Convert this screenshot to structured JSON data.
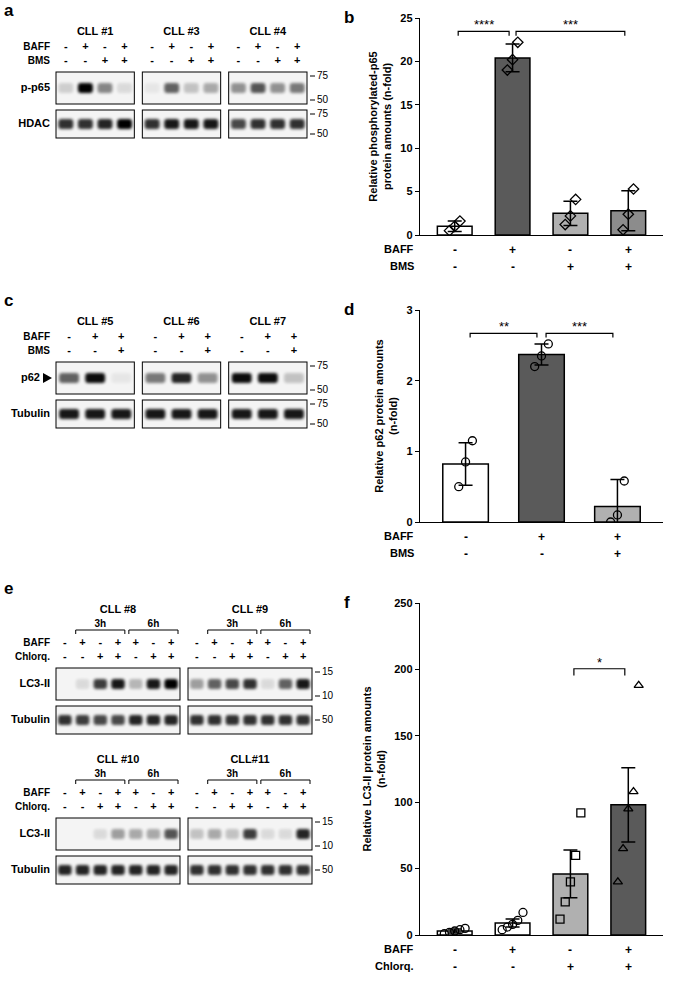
{
  "blots": [
    {
      "panel": "a",
      "conditions": [
        {
          "label": "BAFF",
          "values": [
            "-",
            "+",
            "-",
            "+"
          ]
        },
        {
          "label": "BMS",
          "values": [
            "-",
            "-",
            "+",
            "+"
          ]
        }
      ],
      "rows": [
        {
          "label": "p-p65",
          "markers": [
            75,
            50
          ]
        },
        {
          "label": "HDAC",
          "markers": [
            75,
            50
          ]
        }
      ],
      "samples": [
        {
          "name": "CLL #1",
          "bands": [
            [
              0.15,
              1.0,
              0.45,
              0.1
            ],
            [
              0.8,
              0.8,
              0.85,
              1.0
            ]
          ]
        },
        {
          "name": "CLL #3",
          "bands": [
            [
              0.05,
              0.6,
              0.2,
              0.3
            ],
            [
              0.8,
              0.9,
              0.9,
              0.9
            ]
          ]
        },
        {
          "name": "CLL #4",
          "bands": [
            [
              0.4,
              0.65,
              0.4,
              0.5
            ],
            [
              0.7,
              0.8,
              0.8,
              0.8
            ]
          ]
        }
      ]
    },
    {
      "panel": "c",
      "conditions": [
        {
          "label": "BAFF",
          "values": [
            "-",
            "+",
            "+"
          ]
        },
        {
          "label": "BMS",
          "values": [
            "-",
            "-",
            "+"
          ]
        }
      ],
      "rows": [
        {
          "label": "p62",
          "arrow": true,
          "markers": [
            75,
            50
          ]
        },
        {
          "label": "Tubulin",
          "markers": [
            75,
            50
          ]
        }
      ],
      "samples": [
        {
          "name": "CLL #5",
          "bands": [
            [
              0.6,
              0.95,
              0.05
            ],
            [
              0.9,
              0.9,
              0.9
            ]
          ]
        },
        {
          "name": "CLL #6",
          "bands": [
            [
              0.5,
              0.85,
              0.4
            ],
            [
              0.9,
              0.9,
              0.9
            ]
          ]
        },
        {
          "name": "CLL #7",
          "bands": [
            [
              0.95,
              0.95,
              0.2
            ],
            [
              0.9,
              0.9,
              0.9
            ]
          ]
        }
      ]
    },
    {
      "panel": "e",
      "groups": [
        {
          "label": "3h",
          "lanes": [
            1,
            3
          ]
        },
        {
          "label": "6h",
          "lanes": [
            4,
            6
          ]
        }
      ],
      "conditions": [
        {
          "label": "BAFF",
          "values": [
            "-",
            "+",
            "-",
            "+",
            "+",
            "-",
            "+"
          ]
        },
        {
          "label": "Chlorq.",
          "values": [
            "-",
            "-",
            "+",
            "+",
            "-",
            "+",
            "+"
          ]
        }
      ],
      "rows": [
        {
          "label": "LC3-II",
          "markers": [
            15,
            10
          ]
        },
        {
          "label": "Tubulin",
          "markers": [
            50
          ]
        }
      ],
      "samples": [
        {
          "name": "CLL #8",
          "bands": [
            [
              0.0,
              0.1,
              0.75,
              0.9,
              0.25,
              0.9,
              1.0
            ],
            [
              0.8,
              0.75,
              0.7,
              0.7,
              0.85,
              0.85,
              0.85
            ]
          ]
        },
        {
          "name": "CLL #9",
          "bands": [
            [
              0.35,
              0.6,
              0.7,
              0.8,
              0.1,
              0.6,
              0.9
            ],
            [
              0.8,
              0.8,
              0.8,
              0.8,
              0.8,
              0.8,
              0.8
            ]
          ]
        },
        {
          "name": "CLL #10",
          "bands": [
            [
              0.0,
              0.0,
              0.1,
              0.35,
              0.3,
              0.3,
              0.65
            ],
            [
              0.85,
              0.85,
              0.85,
              0.85,
              0.85,
              0.85,
              0.85
            ]
          ]
        },
        {
          "name": "CLL#11",
          "bands": [
            [
              0.2,
              0.3,
              0.2,
              0.75,
              0.1,
              0.1,
              0.85
            ],
            [
              0.8,
              0.8,
              0.8,
              0.8,
              0.8,
              0.8,
              0.8
            ]
          ]
        }
      ]
    }
  ],
  "chart_data": [
    {
      "panel": "b",
      "type": "bar",
      "y_label": [
        "Relative phosphorylated-p65",
        "protein amounts (n-fold)"
      ],
      "ylim": [
        0,
        25
      ],
      "yticks": [
        0,
        5,
        10,
        15,
        20,
        25
      ],
      "x_rows": [
        {
          "label": "BAFF",
          "values": [
            "-",
            "+",
            "-",
            "+"
          ]
        },
        {
          "label": "BMS",
          "values": [
            "-",
            "-",
            "+",
            "+"
          ]
        }
      ],
      "values": [
        1.0,
        20.4,
        2.5,
        2.8
      ],
      "error": [
        0.6,
        1.6,
        1.4,
        2.3
      ],
      "points": [
        {
          "marker": "diamond",
          "values": [
            0.5,
            1.0,
            1.6
          ]
        },
        {
          "marker": "diamond",
          "values": [
            19.0,
            20.2,
            22.2
          ]
        },
        {
          "marker": "diamond",
          "values": [
            1.2,
            2.2,
            4.1
          ]
        },
        {
          "marker": "diamond",
          "values": [
            0.6,
            2.4,
            5.3
          ]
        }
      ],
      "colors": [
        "#ffffff",
        "#5a5a5a",
        "#b0b0b0",
        "#8c8c8c"
      ],
      "significance": [
        {
          "from": 0,
          "to": 1,
          "label": "****"
        },
        {
          "from": 1,
          "to": 3,
          "label": "***"
        }
      ]
    },
    {
      "panel": "d",
      "type": "bar",
      "y_label": [
        "Relative p62 protein amounts",
        "(n-fold)"
      ],
      "ylim": [
        0,
        3
      ],
      "yticks": [
        0,
        1,
        2,
        3
      ],
      "x_rows": [
        {
          "label": "BAFF",
          "values": [
            "-",
            "+",
            "+"
          ]
        },
        {
          "label": "BMS",
          "values": [
            "-",
            "-",
            "+"
          ]
        }
      ],
      "values": [
        0.82,
        2.37,
        0.22
      ],
      "error": [
        0.3,
        0.15,
        0.38
      ],
      "points": [
        {
          "marker": "circle",
          "values": [
            0.5,
            0.85,
            1.15
          ]
        },
        {
          "marker": "circle",
          "values": [
            2.2,
            2.35,
            2.52
          ]
        },
        {
          "marker": "circle",
          "values": [
            0.0,
            0.1,
            0.58
          ]
        }
      ],
      "colors": [
        "#ffffff",
        "#5a5a5a",
        "#b0b0b0"
      ],
      "significance": [
        {
          "from": 0,
          "to": 1,
          "label": "**"
        },
        {
          "from": 1,
          "to": 2,
          "label": "***"
        }
      ]
    },
    {
      "panel": "f",
      "type": "bar",
      "y_label": [
        "Relative LC3-II protein amounts",
        "(n-fold)"
      ],
      "ylim": [
        0,
        250
      ],
      "yticks": [
        0,
        50,
        100,
        150,
        200,
        250
      ],
      "x_rows": [
        {
          "label": "BAFF",
          "values": [
            "-",
            "+",
            "-",
            "+"
          ]
        },
        {
          "label": "Chlorq.",
          "values": [
            "-",
            "-",
            "+",
            "+"
          ]
        }
      ],
      "values": [
        3,
        9,
        46,
        98
      ],
      "error": [
        1.5,
        3,
        18,
        28
      ],
      "points": [
        {
          "marker": "circle",
          "values": [
            1,
            2,
            3,
            4,
            5
          ]
        },
        {
          "marker": "circle",
          "values": [
            4,
            6,
            8,
            11,
            17
          ]
        },
        {
          "marker": "square",
          "values": [
            12,
            25,
            40,
            60,
            92
          ]
        },
        {
          "marker": "triangle-up",
          "values": [
            40,
            65,
            95,
            108,
            188
          ]
        }
      ],
      "colors": [
        "#ffffff",
        "#ffffff",
        "#b0b0b0",
        "#5a5a5a"
      ],
      "significance": [
        {
          "from": 2,
          "to": 3,
          "label": "*"
        }
      ]
    }
  ]
}
